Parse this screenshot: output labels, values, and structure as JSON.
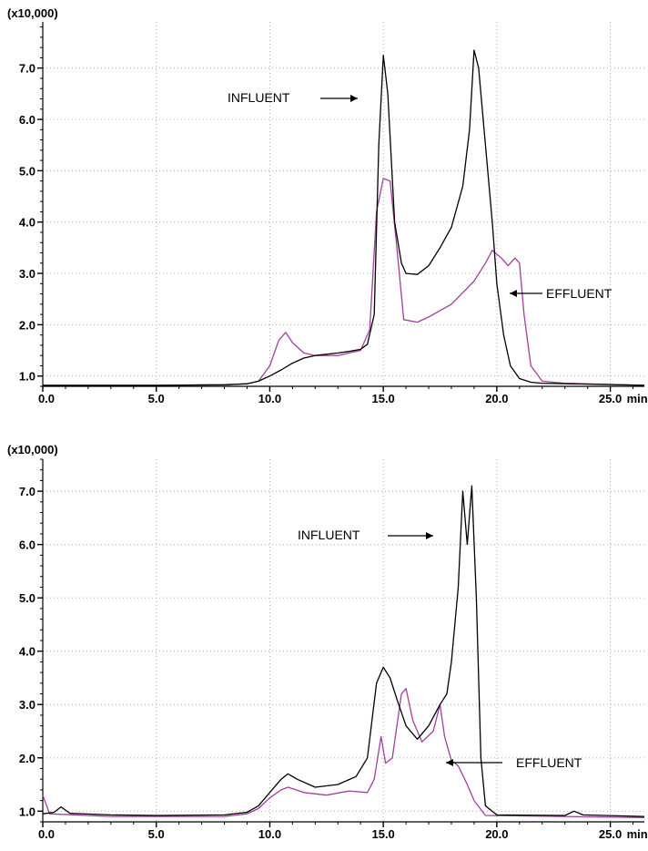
{
  "chart_data": [
    {
      "type": "line",
      "scale_label": "(x10,000)",
      "x_unit": "min",
      "xlim": [
        0,
        26.5
      ],
      "ylim": [
        0.8,
        7.9
      ],
      "x_ticks": [
        "0.0",
        "5.0",
        "10.0",
        "15.0",
        "20.0",
        "25.0"
      ],
      "y_ticks": [
        "1.0",
        "2.0",
        "3.0",
        "4.0",
        "5.0",
        "6.0",
        "7.0"
      ],
      "grid": true,
      "annotations": [
        {
          "text": "INFLUENT",
          "series": "influent"
        },
        {
          "text": "EFFLUENT",
          "series": "effluent"
        }
      ],
      "series": [
        {
          "key": "influent",
          "color": "#000000",
          "points": [
            [
              0,
              0.82
            ],
            [
              5,
              0.82
            ],
            [
              8,
              0.83
            ],
            [
              9,
              0.85
            ],
            [
              9.5,
              0.9
            ],
            [
              10,
              1.0
            ],
            [
              10.5,
              1.12
            ],
            [
              11,
              1.25
            ],
            [
              11.5,
              1.35
            ],
            [
              12,
              1.4
            ],
            [
              13,
              1.45
            ],
            [
              13.5,
              1.48
            ],
            [
              14,
              1.52
            ],
            [
              14.3,
              1.62
            ],
            [
              14.6,
              2.2
            ],
            [
              14.8,
              5.5
            ],
            [
              15.0,
              7.25
            ],
            [
              15.2,
              6.5
            ],
            [
              15.5,
              4.0
            ],
            [
              15.8,
              3.2
            ],
            [
              16,
              3.0
            ],
            [
              16.5,
              2.98
            ],
            [
              17,
              3.15
            ],
            [
              17.5,
              3.5
            ],
            [
              18,
              3.9
            ],
            [
              18.5,
              4.7
            ],
            [
              18.8,
              5.8
            ],
            [
              19.0,
              7.35
            ],
            [
              19.2,
              7.0
            ],
            [
              19.5,
              5.5
            ],
            [
              19.8,
              4.0
            ],
            [
              20,
              2.8
            ],
            [
              20.3,
              1.8
            ],
            [
              20.6,
              1.2
            ],
            [
              21,
              0.95
            ],
            [
              21.5,
              0.88
            ],
            [
              22,
              0.86
            ],
            [
              26.5,
              0.82
            ]
          ]
        },
        {
          "key": "effluent",
          "color": "#a0409a",
          "points": [
            [
              0,
              0.82
            ],
            [
              5,
              0.82
            ],
            [
              8,
              0.83
            ],
            [
              9,
              0.85
            ],
            [
              9.5,
              0.9
            ],
            [
              10,
              1.2
            ],
            [
              10.4,
              1.7
            ],
            [
              10.7,
              1.85
            ],
            [
              11,
              1.65
            ],
            [
              11.5,
              1.45
            ],
            [
              12,
              1.4
            ],
            [
              13,
              1.4
            ],
            [
              14,
              1.5
            ],
            [
              14.4,
              1.9
            ],
            [
              14.7,
              4.2
            ],
            [
              15,
              4.85
            ],
            [
              15.3,
              4.8
            ],
            [
              15.6,
              3.5
            ],
            [
              15.9,
              2.1
            ],
            [
              16.5,
              2.05
            ],
            [
              17,
              2.15
            ],
            [
              18,
              2.4
            ],
            [
              19,
              2.85
            ],
            [
              19.5,
              3.2
            ],
            [
              19.8,
              3.45
            ],
            [
              20.2,
              3.3
            ],
            [
              20.5,
              3.15
            ],
            [
              20.8,
              3.3
            ],
            [
              21.0,
              3.2
            ],
            [
              21.2,
              2.2
            ],
            [
              21.5,
              1.2
            ],
            [
              22,
              0.9
            ],
            [
              23,
              0.86
            ],
            [
              26.5,
              0.82
            ]
          ]
        }
      ]
    },
    {
      "type": "line",
      "scale_label": "(x10,000)",
      "x_unit": "min",
      "xlim": [
        0,
        26.5
      ],
      "ylim": [
        0.8,
        7.6
      ],
      "x_ticks": [
        "0.0",
        "5.0",
        "10.0",
        "15.0",
        "20.0",
        "25.0"
      ],
      "y_ticks": [
        "1.0",
        "2.0",
        "3.0",
        "4.0",
        "5.0",
        "6.0",
        "7.0"
      ],
      "grid": true,
      "annotations": [
        {
          "text": "INFLUENT",
          "series": "influent"
        },
        {
          "text": "EFFLUENT",
          "series": "effluent"
        }
      ],
      "series": [
        {
          "key": "influent",
          "color": "#000000",
          "points": [
            [
              0,
              0.95
            ],
            [
              0.5,
              0.98
            ],
            [
              0.8,
              1.08
            ],
            [
              1.2,
              0.96
            ],
            [
              3,
              0.93
            ],
            [
              5,
              0.92
            ],
            [
              8,
              0.93
            ],
            [
              9,
              0.98
            ],
            [
              9.5,
              1.1
            ],
            [
              10,
              1.35
            ],
            [
              10.5,
              1.6
            ],
            [
              10.8,
              1.7
            ],
            [
              11.2,
              1.6
            ],
            [
              12,
              1.45
            ],
            [
              13,
              1.5
            ],
            [
              13.8,
              1.65
            ],
            [
              14.3,
              2.0
            ],
            [
              14.7,
              3.4
            ],
            [
              15,
              3.7
            ],
            [
              15.3,
              3.5
            ],
            [
              15.6,
              3.1
            ],
            [
              16,
              2.6
            ],
            [
              16.5,
              2.35
            ],
            [
              17,
              2.6
            ],
            [
              17.5,
              3.0
            ],
            [
              17.8,
              3.2
            ],
            [
              18,
              3.8
            ],
            [
              18.3,
              5.2
            ],
            [
              18.5,
              7.0
            ],
            [
              18.7,
              6.0
            ],
            [
              18.9,
              7.1
            ],
            [
              19.1,
              5.0
            ],
            [
              19.3,
              2.0
            ],
            [
              19.5,
              1.1
            ],
            [
              20,
              0.93
            ],
            [
              23,
              0.92
            ],
            [
              23.4,
              1.0
            ],
            [
              23.8,
              0.93
            ],
            [
              26.5,
              0.9
            ]
          ]
        },
        {
          "key": "effluent",
          "color": "#a0409a",
          "points": [
            [
              0,
              1.3
            ],
            [
              0.3,
              0.95
            ],
            [
              3,
              0.9
            ],
            [
              5,
              0.9
            ],
            [
              8,
              0.9
            ],
            [
              9,
              0.95
            ],
            [
              9.5,
              1.05
            ],
            [
              10,
              1.25
            ],
            [
              10.5,
              1.4
            ],
            [
              10.8,
              1.45
            ],
            [
              11.5,
              1.35
            ],
            [
              12.5,
              1.3
            ],
            [
              13.5,
              1.38
            ],
            [
              14.3,
              1.35
            ],
            [
              14.6,
              1.6
            ],
            [
              14.9,
              2.4
            ],
            [
              15.1,
              1.9
            ],
            [
              15.4,
              2.0
            ],
            [
              15.8,
              3.2
            ],
            [
              16,
              3.3
            ],
            [
              16.3,
              2.7
            ],
            [
              16.7,
              2.3
            ],
            [
              17.2,
              2.5
            ],
            [
              17.5,
              3.0
            ],
            [
              17.7,
              2.4
            ],
            [
              18,
              1.95
            ],
            [
              18.3,
              1.85
            ],
            [
              18.7,
              1.5
            ],
            [
              19,
              1.2
            ],
            [
              19.5,
              0.92
            ],
            [
              26.5,
              0.88
            ]
          ]
        }
      ]
    }
  ]
}
